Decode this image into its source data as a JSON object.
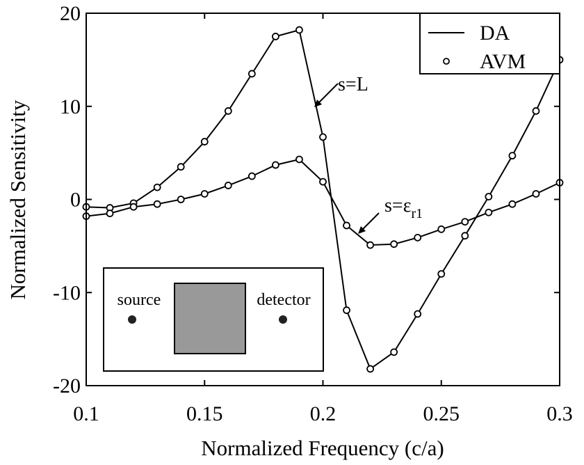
{
  "chart_data": {
    "type": "line",
    "xlabel": "Normalized Frequency (c/a)",
    "ylabel": "Normalized Sensitivity",
    "xlim": [
      0.1,
      0.3
    ],
    "ylim": [
      -20,
      20
    ],
    "xticks": [
      "0.1",
      "0.15",
      "0.2",
      "0.25",
      "0.3"
    ],
    "yticks": [
      "20",
      "10",
      "0",
      "-10",
      "-20"
    ],
    "grid": false,
    "legend": {
      "placement": "top-right",
      "entries": [
        {
          "label": "DA",
          "marker": "line"
        },
        {
          "label": "AVM",
          "marker": "open-circle"
        }
      ]
    },
    "x": [
      0.1,
      0.11,
      0.12,
      0.13,
      0.14,
      0.15,
      0.16,
      0.17,
      0.18,
      0.19,
      0.2,
      0.21,
      0.22,
      0.23,
      0.24,
      0.25,
      0.26,
      0.27,
      0.28,
      0.29,
      0.3
    ],
    "series": [
      {
        "annotation": "s=L",
        "values": [
          -0.8,
          -0.9,
          -0.4,
          1.3,
          3.5,
          6.2,
          9.5,
          13.5,
          17.5,
          18.2,
          6.7,
          -11.9,
          -18.2,
          -16.4,
          -12.3,
          -8.0,
          -3.9,
          0.3,
          4.7,
          9.5,
          15.0
        ]
      },
      {
        "annotation": "s=εr1",
        "values": [
          -1.8,
          -1.5,
          -0.8,
          -0.5,
          0.0,
          0.6,
          1.5,
          2.5,
          3.7,
          4.3,
          1.9,
          -2.8,
          -4.9,
          -4.8,
          -4.1,
          -3.2,
          -2.4,
          -1.4,
          -0.5,
          0.6,
          1.8
        ]
      }
    ],
    "annotations": [
      {
        "text": "s=L"
      },
      {
        "text": "s=ε",
        "subscript": "r1"
      }
    ],
    "inset": {
      "labels": {
        "left": "source",
        "right": "detector"
      },
      "colors": {
        "block": "#999999",
        "dot": "#222222"
      }
    }
  }
}
